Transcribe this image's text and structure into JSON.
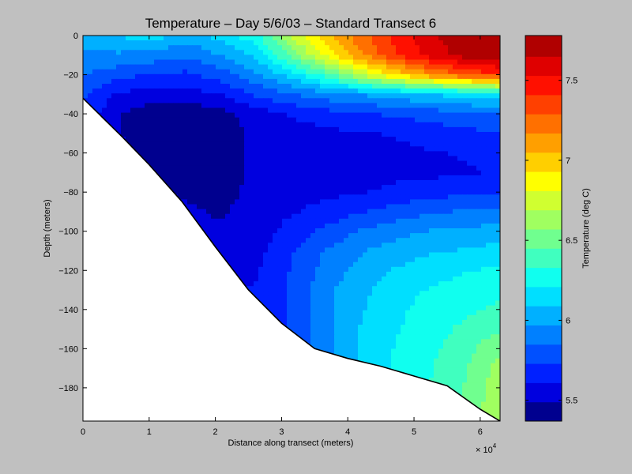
{
  "chart_data": {
    "type": "heatmap",
    "title": "Temperature – Day 5/6/03 – Standard Transect 6",
    "xlabel": "Distance along transect (meters)",
    "ylabel": "Depth (meters)",
    "x_multiplier_label": "× 10",
    "x_multiplier_exponent": "4",
    "xlim": [
      0,
      63000
    ],
    "ylim": [
      -197,
      0
    ],
    "xticks": [
      0,
      10000,
      20000,
      30000,
      40000,
      50000,
      60000
    ],
    "xtick_labels": [
      "0",
      "1",
      "2",
      "3",
      "4",
      "5",
      "6"
    ],
    "yticks": [
      0,
      -20,
      -40,
      -60,
      -80,
      -100,
      -120,
      -140,
      -160,
      -180
    ],
    "ytick_labels": [
      "0",
      "−20",
      "−40",
      "−60",
      "−80",
      "−100",
      "−120",
      "−140",
      "−160",
      "−180"
    ],
    "colorbar": {
      "label": "Temperature (deg C)",
      "range": [
        5.37,
        7.78
      ],
      "ticks": [
        5.5,
        6.0,
        6.5,
        7.0,
        7.5
      ],
      "tick_labels": [
        "5.5",
        "6",
        "6.5",
        "7",
        "7.5"
      ],
      "levels": [
        5.37,
        5.49,
        5.61,
        5.73,
        5.85,
        5.97,
        6.09,
        6.21,
        6.33,
        6.45,
        6.57,
        6.69,
        6.81,
        6.93,
        7.05,
        7.17,
        7.29,
        7.41,
        7.53,
        7.65,
        7.78
      ],
      "colors": [
        "#00008f",
        "#0000df",
        "#0020ff",
        "#0050ff",
        "#0080ff",
        "#00b0ff",
        "#00dfff",
        "#10ffef",
        "#40ffbf",
        "#70ff8f",
        "#a0ff60",
        "#d0ff30",
        "#ffff00",
        "#ffcf00",
        "#ff9f00",
        "#ff7000",
        "#ff4000",
        "#ff1000",
        "#df0000",
        "#b00000"
      ]
    },
    "bathymetry": {
      "distance": [
        0,
        3000,
        6000,
        10000,
        15000,
        20000,
        25000,
        30000,
        35000,
        40000,
        45000,
        50000,
        55000,
        60000,
        63000
      ],
      "depth": [
        -32,
        -42,
        -52,
        -66,
        -85,
        -108,
        -130,
        -147,
        -160,
        -165,
        -169,
        -174,
        -179,
        -191,
        -197
      ]
    },
    "grid": {
      "x": [
        0,
        5250,
        10500,
        15750,
        21000,
        26250,
        31500,
        36750,
        42000,
        47250,
        52500,
        57750,
        63000
      ],
      "y": [
        0,
        -10,
        -20,
        -30,
        -40,
        -50,
        -60,
        -70,
        -80,
        -90,
        -100,
        -110,
        -120,
        -130,
        -140,
        -150,
        -160,
        -170,
        -180,
        -190,
        -197
      ],
      "z": [
        [
          6.05,
          6.1,
          6.15,
          6.02,
          6.15,
          6.3,
          6.7,
          7.0,
          7.25,
          7.45,
          7.62,
          7.75,
          7.78
        ],
        [
          5.95,
          5.95,
          5.92,
          5.88,
          5.97,
          6.12,
          6.5,
          6.85,
          7.15,
          7.4,
          7.58,
          7.7,
          7.76
        ],
        [
          5.85,
          5.78,
          5.72,
          5.7,
          5.8,
          5.95,
          6.15,
          6.4,
          6.7,
          6.95,
          7.15,
          7.3,
          7.4
        ],
        [
          5.75,
          5.6,
          5.55,
          5.55,
          5.62,
          5.75,
          5.85,
          5.92,
          5.98,
          6.05,
          6.1,
          6.15,
          6.2
        ],
        [
          5.7,
          5.5,
          5.42,
          5.4,
          5.45,
          5.55,
          5.62,
          5.68,
          5.72,
          5.75,
          5.78,
          5.82,
          5.85
        ],
        [
          5.7,
          5.5,
          5.42,
          5.4,
          5.42,
          5.52,
          5.56,
          5.58,
          5.6,
          5.62,
          5.66,
          5.7,
          5.72
        ],
        [
          5.7,
          5.52,
          5.45,
          5.42,
          5.42,
          5.52,
          5.56,
          5.56,
          5.57,
          5.58,
          5.6,
          5.62,
          5.64
        ],
        [
          5.7,
          5.55,
          5.48,
          5.45,
          5.44,
          5.52,
          5.56,
          5.56,
          5.57,
          5.58,
          5.58,
          5.6,
          5.62
        ],
        [
          5.7,
          5.55,
          5.5,
          5.48,
          5.46,
          5.52,
          5.57,
          5.58,
          5.6,
          5.64,
          5.68,
          5.7,
          5.72
        ],
        [
          5.7,
          5.55,
          5.52,
          5.5,
          5.48,
          5.53,
          5.6,
          5.65,
          5.72,
          5.78,
          5.84,
          5.86,
          5.88
        ],
        [
          5.7,
          5.56,
          5.54,
          5.52,
          5.5,
          5.55,
          5.66,
          5.76,
          5.86,
          5.92,
          5.98,
          6.0,
          6.02
        ],
        [
          5.7,
          5.58,
          5.56,
          5.55,
          5.54,
          5.57,
          5.72,
          5.86,
          5.96,
          6.02,
          6.08,
          6.1,
          6.14
        ],
        [
          5.7,
          5.6,
          5.58,
          5.57,
          5.56,
          5.6,
          5.74,
          5.9,
          6.02,
          6.1,
          6.16,
          6.2,
          6.24
        ],
        [
          5.7,
          5.62,
          5.6,
          5.6,
          5.6,
          5.62,
          5.74,
          5.94,
          6.06,
          6.16,
          6.22,
          6.26,
          6.3
        ],
        [
          5.7,
          5.64,
          5.62,
          5.62,
          5.62,
          5.64,
          5.74,
          5.94,
          6.08,
          6.18,
          6.26,
          6.3,
          6.36
        ],
        [
          5.7,
          5.66,
          5.64,
          5.64,
          5.64,
          5.66,
          5.74,
          5.94,
          6.1,
          6.2,
          6.28,
          6.36,
          6.44
        ],
        [
          5.7,
          5.68,
          5.66,
          5.66,
          5.66,
          5.68,
          5.74,
          5.94,
          6.1,
          6.22,
          6.3,
          6.4,
          6.55
        ],
        [
          5.7,
          5.7,
          5.68,
          5.68,
          5.68,
          5.7,
          5.76,
          5.94,
          6.1,
          6.22,
          6.32,
          6.44,
          6.62
        ],
        [
          5.7,
          5.7,
          5.7,
          5.7,
          5.7,
          5.72,
          5.78,
          5.95,
          6.1,
          6.22,
          6.34,
          6.46,
          6.65
        ],
        [
          5.7,
          5.7,
          5.7,
          5.7,
          5.7,
          5.72,
          5.78,
          5.95,
          6.1,
          6.22,
          6.34,
          6.48,
          6.66
        ],
        [
          5.7,
          5.7,
          5.7,
          5.7,
          5.7,
          5.72,
          5.78,
          5.95,
          6.1,
          6.22,
          6.34,
          6.48,
          6.66
        ]
      ]
    }
  }
}
